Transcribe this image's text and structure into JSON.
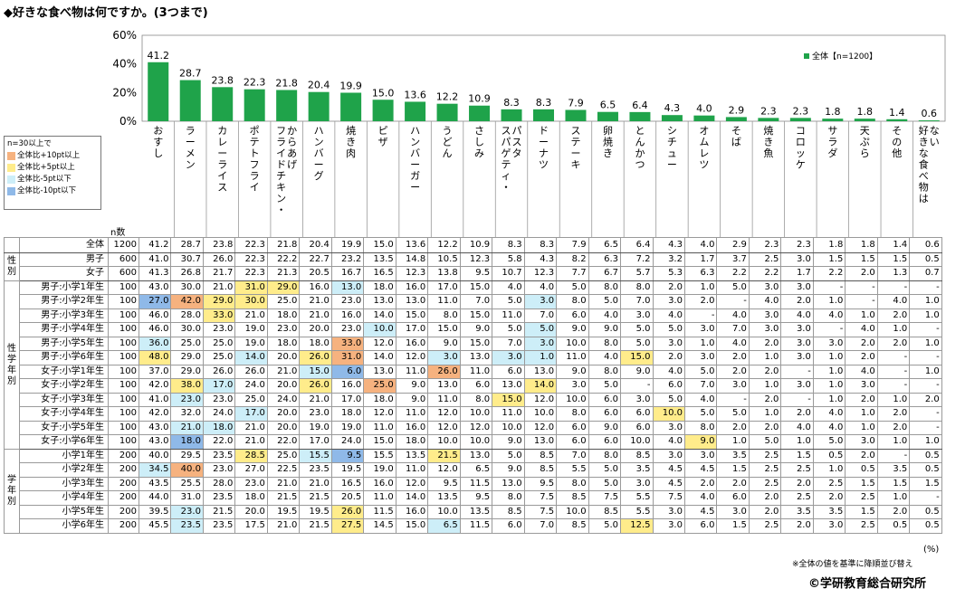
{
  "title": "◆好きな食べ物は何ですか。(3つまで)",
  "legend": {
    "header": "n=30以上で",
    "items": [
      {
        "label": "全体比+10pt以上",
        "color": "#f6b27f"
      },
      {
        "label": "全体比+5pt以上",
        "color": "#ffec8b"
      },
      {
        "label": "全体比-5pt以下",
        "color": "#cdeef8"
      },
      {
        "label": "全体比-10pt以下",
        "color": "#8fb9e8"
      }
    ]
  },
  "series_legend": "全体【n=1200】",
  "n_label": "n数",
  "unit": "(%)",
  "note": "※全体の値を基準に降順並び替え",
  "copyright": "©学研教育総合研究所",
  "colors": {
    "bar": "#1fa34a",
    "plus10": "#f6b27f",
    "plus5": "#ffec8b",
    "minus5": "#cdeef8",
    "minus10": "#8fb9e8"
  },
  "chart_data": {
    "type": "bar",
    "categories": [
      "おすし",
      "ラーメン",
      "カレーライス",
      "ポテトフライ",
      "からあげ・フライドチキン",
      "ハンバーグ",
      "焼き肉",
      "ピザ",
      "ハンバーガー",
      "うどん",
      "さしみ",
      "スパゲティ・パスタ",
      "ドーナツ",
      "ステーキ",
      "卵焼き",
      "とんかつ",
      "シチュー",
      "オムレツ",
      "そば",
      "焼き魚",
      "コロッケ",
      "サラダ",
      "天ぷら",
      "その他",
      "好きな食べ物はない"
    ],
    "category_columns": [
      [
        "おすし"
      ],
      [
        "ラーメン"
      ],
      [
        "カレーライス"
      ],
      [
        "ポテトフライ"
      ],
      [
        "からあげ",
        "フライドチキン・"
      ],
      [
        "ハンバーグ"
      ],
      [
        "焼き肉"
      ],
      [
        "ピザ"
      ],
      [
        "ハンバーガー"
      ],
      [
        "うどん"
      ],
      [
        "さしみ"
      ],
      [
        "パスタ",
        "スパゲティ・"
      ],
      [
        "ドーナツ"
      ],
      [
        "ステーキ"
      ],
      [
        "卵焼き"
      ],
      [
        "とんかつ"
      ],
      [
        "シチュー"
      ],
      [
        "オムレツ"
      ],
      [
        "そば"
      ],
      [
        "焼き魚"
      ],
      [
        "コロッケ"
      ],
      [
        "サラダ"
      ],
      [
        "天ぷら"
      ],
      [
        "その他"
      ],
      [
        "ない",
        "好きな食べ物は"
      ]
    ],
    "series": [
      {
        "name": "全体【n=1200】",
        "values": [
          41.2,
          28.7,
          23.8,
          22.3,
          21.8,
          20.4,
          19.9,
          15.0,
          13.6,
          12.2,
          10.9,
          8.3,
          8.3,
          7.9,
          6.5,
          6.4,
          4.3,
          4.0,
          2.9,
          2.3,
          2.3,
          1.8,
          1.8,
          1.4,
          0.6
        ]
      }
    ],
    "value_labels": [
      "41.2",
      "28.7",
      "23.8",
      "22.3",
      "21.8",
      "20.4",
      "19.9",
      "15.0",
      "13.6",
      "12.2",
      "10.9",
      "8.3",
      "8.3",
      "7.9",
      "6.5",
      "6.4",
      "4.3",
      "4.0",
      "2.9",
      "2.3",
      "2.3",
      "1.8",
      "1.8",
      "1.4",
      "0.6"
    ],
    "y_ticks": [
      "0%",
      "20%",
      "40%",
      "60%"
    ],
    "ylim": [
      0,
      60
    ],
    "legend_position": "top-right",
    "grid": false
  },
  "table": {
    "groups": [
      {
        "label": "",
        "rows": [
          0
        ]
      },
      {
        "label": "性別",
        "rows": [
          1,
          2
        ]
      },
      {
        "label": "性学年別",
        "rows": [
          3,
          4,
          5,
          6,
          7,
          8,
          9,
          10,
          11,
          12,
          13,
          14
        ]
      },
      {
        "label": "学年別",
        "rows": [
          15,
          16,
          17,
          18,
          19,
          20
        ]
      }
    ],
    "rows": [
      {
        "label": "全体",
        "n": "1200",
        "values": [
          "41.2",
          "28.7",
          "23.8",
          "22.3",
          "21.8",
          "20.4",
          "19.9",
          "15.0",
          "13.6",
          "12.2",
          "10.9",
          "8.3",
          "8.3",
          "7.9",
          "6.5",
          "6.4",
          "4.3",
          "4.0",
          "2.9",
          "2.3",
          "2.3",
          "1.8",
          "1.8",
          "1.4",
          "0.6"
        ],
        "highlights": []
      },
      {
        "label": "男子",
        "n": "600",
        "values": [
          "41.0",
          "30.7",
          "26.0",
          "22.3",
          "22.2",
          "22.7",
          "23.2",
          "13.5",
          "14.8",
          "10.5",
          "12.3",
          "5.8",
          "4.3",
          "8.2",
          "6.3",
          "7.2",
          "3.2",
          "1.7",
          "3.7",
          "2.5",
          "3.0",
          "1.5",
          "1.5",
          "1.5",
          "0.5"
        ],
        "highlights": []
      },
      {
        "label": "女子",
        "n": "600",
        "values": [
          "41.3",
          "26.8",
          "21.7",
          "22.3",
          "21.3",
          "20.5",
          "16.7",
          "16.5",
          "12.3",
          "13.8",
          "9.5",
          "10.7",
          "12.3",
          "7.7",
          "6.7",
          "5.7",
          "5.3",
          "6.3",
          "2.2",
          "2.2",
          "1.7",
          "2.2",
          "2.0",
          "1.3",
          "0.7"
        ],
        "highlights": []
      },
      {
        "label": "男子:小学1年生",
        "n": "100",
        "values": [
          "43.0",
          "30.0",
          "21.0",
          "31.0",
          "29.0",
          "16.0",
          "13.0",
          "18.0",
          "16.0",
          "17.0",
          "15.0",
          "4.0",
          "4.0",
          "5.0",
          "8.0",
          "8.0",
          "2.0",
          "1.0",
          "5.0",
          "3.0",
          "3.0",
          "-",
          "-",
          "-",
          "-"
        ],
        "highlights": [
          [
            3,
            "plus5"
          ],
          [
            4,
            "plus5"
          ],
          [
            6,
            "minus5"
          ]
        ]
      },
      {
        "label": "男子:小学2年生",
        "n": "100",
        "values": [
          "27.0",
          "42.0",
          "29.0",
          "30.0",
          "25.0",
          "21.0",
          "23.0",
          "13.0",
          "13.0",
          "11.0",
          "7.0",
          "5.0",
          "3.0",
          "8.0",
          "5.0",
          "7.0",
          "3.0",
          "2.0",
          "-",
          "4.0",
          "2.0",
          "1.0",
          "-",
          "4.0",
          "1.0"
        ],
        "highlights": [
          [
            0,
            "minus10"
          ],
          [
            1,
            "plus10"
          ],
          [
            2,
            "plus5"
          ],
          [
            3,
            "plus5"
          ],
          [
            12,
            "minus5"
          ]
        ]
      },
      {
        "label": "男子:小学3年生",
        "n": "100",
        "values": [
          "46.0",
          "28.0",
          "33.0",
          "21.0",
          "18.0",
          "21.0",
          "16.0",
          "14.0",
          "15.0",
          "8.0",
          "15.0",
          "11.0",
          "7.0",
          "6.0",
          "4.0",
          "3.0",
          "4.0",
          "-",
          "4.0",
          "3.0",
          "4.0",
          "4.0",
          "1.0",
          "2.0",
          "1.0"
        ],
        "highlights": [
          [
            2,
            "plus5"
          ]
        ]
      },
      {
        "label": "男子:小学4年生",
        "n": "100",
        "values": [
          "46.0",
          "30.0",
          "23.0",
          "19.0",
          "23.0",
          "20.0",
          "23.0",
          "10.0",
          "17.0",
          "15.0",
          "9.0",
          "5.0",
          "5.0",
          "9.0",
          "9.0",
          "5.0",
          "5.0",
          "3.0",
          "7.0",
          "3.0",
          "3.0",
          "-",
          "4.0",
          "1.0",
          "-"
        ],
        "highlights": [
          [
            7,
            "minus5"
          ],
          [
            12,
            "minus5"
          ]
        ]
      },
      {
        "label": "男子:小学5年生",
        "n": "100",
        "values": [
          "36.0",
          "25.0",
          "25.0",
          "19.0",
          "18.0",
          "18.0",
          "33.0",
          "12.0",
          "16.0",
          "9.0",
          "15.0",
          "7.0",
          "3.0",
          "10.0",
          "8.0",
          "5.0",
          "3.0",
          "1.0",
          "4.0",
          "2.0",
          "3.0",
          "3.0",
          "2.0",
          "2.0",
          "1.0"
        ],
        "highlights": [
          [
            0,
            "minus5"
          ],
          [
            6,
            "plus10"
          ],
          [
            12,
            "minus5"
          ]
        ]
      },
      {
        "label": "男子:小学6年生",
        "n": "100",
        "values": [
          "48.0",
          "29.0",
          "25.0",
          "14.0",
          "20.0",
          "26.0",
          "31.0",
          "14.0",
          "12.0",
          "3.0",
          "13.0",
          "3.0",
          "1.0",
          "11.0",
          "4.0",
          "15.0",
          "2.0",
          "3.0",
          "2.0",
          "1.0",
          "3.0",
          "1.0",
          "2.0",
          "-",
          "-"
        ],
        "highlights": [
          [
            0,
            "plus5"
          ],
          [
            3,
            "minus5"
          ],
          [
            5,
            "plus5"
          ],
          [
            6,
            "plus10"
          ],
          [
            9,
            "minus5"
          ],
          [
            11,
            "minus5"
          ],
          [
            12,
            "minus5"
          ],
          [
            15,
            "plus5"
          ]
        ]
      },
      {
        "label": "女子:小学1年生",
        "n": "100",
        "values": [
          "37.0",
          "29.0",
          "26.0",
          "26.0",
          "21.0",
          "15.0",
          "6.0",
          "13.0",
          "11.0",
          "26.0",
          "11.0",
          "6.0",
          "13.0",
          "9.0",
          "8.0",
          "9.0",
          "4.0",
          "5.0",
          "2.0",
          "2.0",
          "-",
          "1.0",
          "4.0",
          "-",
          "1.0"
        ],
        "highlights": [
          [
            5,
            "minus5"
          ],
          [
            6,
            "minus10"
          ],
          [
            9,
            "plus10"
          ]
        ]
      },
      {
        "label": "女子:小学2年生",
        "n": "100",
        "values": [
          "42.0",
          "38.0",
          "17.0",
          "24.0",
          "20.0",
          "26.0",
          "16.0",
          "25.0",
          "9.0",
          "13.0",
          "6.0",
          "13.0",
          "14.0",
          "3.0",
          "5.0",
          "-",
          "6.0",
          "7.0",
          "3.0",
          "1.0",
          "3.0",
          "1.0",
          "3.0",
          "-",
          "-"
        ],
        "highlights": [
          [
            1,
            "plus5"
          ],
          [
            2,
            "minus5"
          ],
          [
            5,
            "plus5"
          ],
          [
            7,
            "plus10"
          ],
          [
            12,
            "plus5"
          ]
        ]
      },
      {
        "label": "女子:小学3年生",
        "n": "100",
        "values": [
          "41.0",
          "23.0",
          "23.0",
          "25.0",
          "24.0",
          "21.0",
          "17.0",
          "18.0",
          "9.0",
          "11.0",
          "8.0",
          "15.0",
          "12.0",
          "10.0",
          "6.0",
          "3.0",
          "5.0",
          "4.0",
          "-",
          "2.0",
          "-",
          "1.0",
          "2.0",
          "1.0",
          "2.0"
        ],
        "highlights": [
          [
            1,
            "minus5"
          ],
          [
            11,
            "plus5"
          ]
        ]
      },
      {
        "label": "女子:小学4年生",
        "n": "100",
        "values": [
          "42.0",
          "32.0",
          "24.0",
          "17.0",
          "20.0",
          "23.0",
          "18.0",
          "12.0",
          "11.0",
          "12.0",
          "10.0",
          "11.0",
          "10.0",
          "8.0",
          "6.0",
          "6.0",
          "10.0",
          "5.0",
          "5.0",
          "1.0",
          "2.0",
          "4.0",
          "1.0",
          "2.0",
          "-"
        ],
        "highlights": [
          [
            3,
            "minus5"
          ],
          [
            16,
            "plus5"
          ]
        ]
      },
      {
        "label": "女子:小学5年生",
        "n": "100",
        "values": [
          "43.0",
          "21.0",
          "18.0",
          "21.0",
          "20.0",
          "19.0",
          "19.0",
          "11.0",
          "16.0",
          "12.0",
          "12.0",
          "10.0",
          "12.0",
          "6.0",
          "9.0",
          "6.0",
          "3.0",
          "8.0",
          "2.0",
          "2.0",
          "4.0",
          "4.0",
          "1.0",
          "2.0",
          "-"
        ],
        "highlights": [
          [
            1,
            "minus5"
          ],
          [
            2,
            "minus5"
          ]
        ]
      },
      {
        "label": "女子:小学6年生",
        "n": "100",
        "values": [
          "43.0",
          "18.0",
          "22.0",
          "21.0",
          "22.0",
          "17.0",
          "24.0",
          "15.0",
          "18.0",
          "10.0",
          "10.0",
          "9.0",
          "13.0",
          "6.0",
          "6.0",
          "10.0",
          "4.0",
          "9.0",
          "1.0",
          "5.0",
          "1.0",
          "5.0",
          "3.0",
          "1.0",
          "1.0"
        ],
        "highlights": [
          [
            1,
            "minus10"
          ],
          [
            17,
            "plus5"
          ]
        ]
      },
      {
        "label": "小学1年生",
        "n": "200",
        "values": [
          "40.0",
          "29.5",
          "23.5",
          "28.5",
          "25.0",
          "15.5",
          "9.5",
          "15.5",
          "13.5",
          "21.5",
          "13.0",
          "5.0",
          "8.5",
          "7.0",
          "8.0",
          "8.5",
          "3.0",
          "3.0",
          "3.5",
          "2.5",
          "1.5",
          "0.5",
          "2.0",
          "-",
          "0.5"
        ],
        "highlights": [
          [
            3,
            "plus5"
          ],
          [
            5,
            "minus5"
          ],
          [
            6,
            "minus10"
          ],
          [
            9,
            "plus5"
          ]
        ]
      },
      {
        "label": "小学2年生",
        "n": "200",
        "values": [
          "34.5",
          "40.0",
          "23.0",
          "27.0",
          "22.5",
          "23.5",
          "19.5",
          "19.0",
          "11.0",
          "12.0",
          "6.5",
          "9.0",
          "8.5",
          "5.5",
          "5.0",
          "3.5",
          "4.5",
          "4.5",
          "1.5",
          "2.5",
          "2.5",
          "1.0",
          "0.5",
          "3.5",
          "0.5"
        ],
        "highlights": [
          [
            0,
            "minus5"
          ],
          [
            1,
            "plus10"
          ]
        ]
      },
      {
        "label": "小学3年生",
        "n": "200",
        "values": [
          "43.5",
          "25.5",
          "28.0",
          "23.0",
          "21.0",
          "21.0",
          "16.5",
          "16.0",
          "12.0",
          "9.5",
          "11.5",
          "13.0",
          "9.5",
          "8.0",
          "5.0",
          "3.0",
          "4.5",
          "2.0",
          "2.0",
          "2.5",
          "2.0",
          "2.5",
          "1.5",
          "1.5",
          "1.5"
        ],
        "highlights": []
      },
      {
        "label": "小学4年生",
        "n": "200",
        "values": [
          "44.0",
          "31.0",
          "23.5",
          "18.0",
          "21.5",
          "21.5",
          "20.5",
          "11.0",
          "14.0",
          "13.5",
          "9.5",
          "8.0",
          "7.5",
          "8.5",
          "7.5",
          "5.5",
          "7.5",
          "4.0",
          "6.0",
          "2.0",
          "2.5",
          "2.0",
          "2.5",
          "1.0",
          "-"
        ],
        "highlights": []
      },
      {
        "label": "小学5年生",
        "n": "200",
        "values": [
          "39.5",
          "23.0",
          "21.5",
          "20.0",
          "19.5",
          "19.5",
          "26.0",
          "11.5",
          "16.0",
          "10.0",
          "13.5",
          "8.5",
          "7.5",
          "10.0",
          "8.5",
          "5.5",
          "3.0",
          "4.5",
          "3.0",
          "2.0",
          "3.5",
          "3.5",
          "1.5",
          "2.0",
          "0.5"
        ],
        "highlights": [
          [
            1,
            "minus5"
          ],
          [
            6,
            "plus5"
          ]
        ]
      },
      {
        "label": "小学6年生",
        "n": "200",
        "values": [
          "45.5",
          "23.5",
          "23.5",
          "17.5",
          "21.0",
          "21.5",
          "27.5",
          "14.5",
          "15.0",
          "6.5",
          "11.5",
          "6.0",
          "7.0",
          "8.5",
          "5.0",
          "12.5",
          "3.0",
          "6.0",
          "1.5",
          "2.5",
          "2.0",
          "3.0",
          "2.5",
          "0.5",
          "0.5"
        ],
        "highlights": [
          [
            1,
            "minus5"
          ],
          [
            6,
            "plus5"
          ],
          [
            9,
            "minus5"
          ],
          [
            15,
            "plus5"
          ]
        ]
      }
    ]
  }
}
